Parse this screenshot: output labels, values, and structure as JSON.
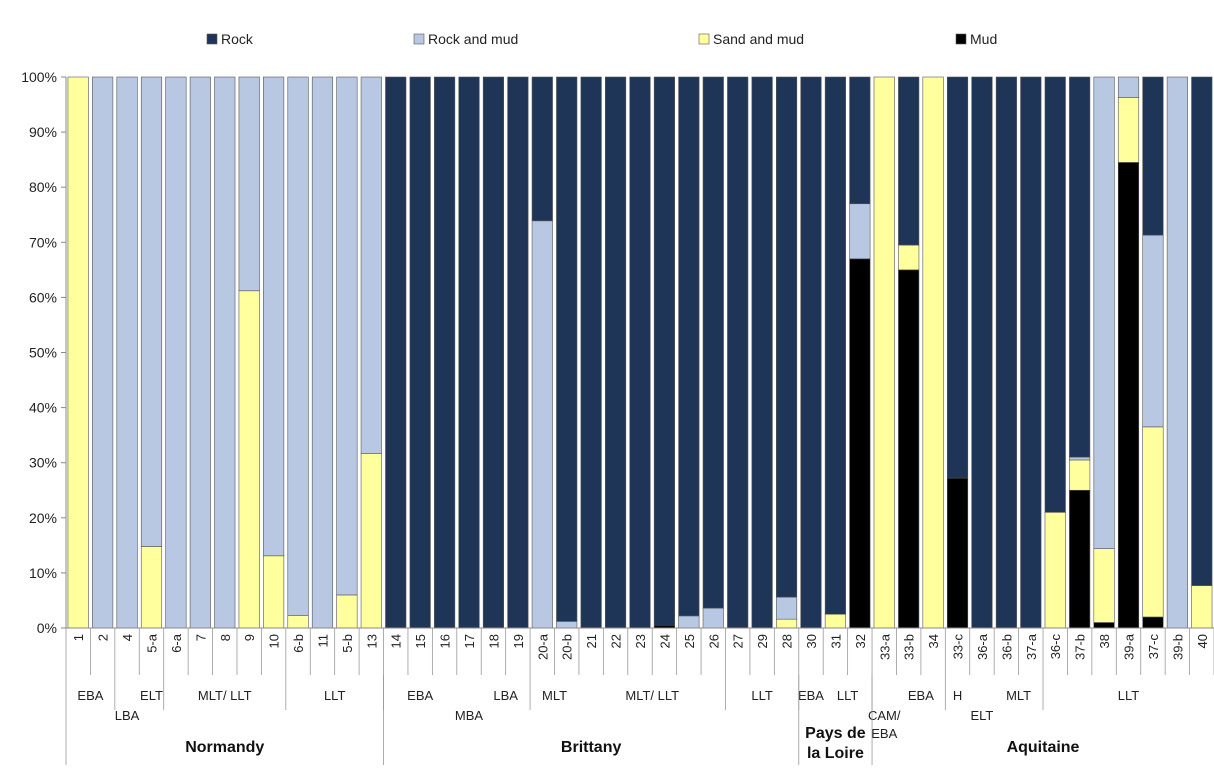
{
  "chart_data": {
    "type": "bar",
    "stacked": true,
    "ylim": [
      0,
      100
    ],
    "y_ticks": [
      "0%",
      "10%",
      "20%",
      "30%",
      "40%",
      "50%",
      "60%",
      "70%",
      "80%",
      "90%",
      "100%"
    ],
    "grid": false,
    "legend_position": "top",
    "series": [
      {
        "name": "Rock",
        "color": "#1f3558"
      },
      {
        "name": "Rock and mud",
        "color": "#b8c8e2"
      },
      {
        "name": "Sand and mud",
        "color": "#ffff9e"
      },
      {
        "name": "Mud",
        "color": "#000000"
      }
    ],
    "categories": [
      "1",
      "2",
      "4",
      "5-a",
      "6-a",
      "7",
      "8",
      "9",
      "10",
      "6-b",
      "11",
      "5-b",
      "13",
      "14",
      "15",
      "16",
      "17",
      "18",
      "19",
      "20-a",
      "20-b",
      "21",
      "22",
      "23",
      "24",
      "25",
      "26",
      "27",
      "29",
      "28",
      "30",
      "31",
      "32",
      "33-a",
      "33-b",
      "34",
      "33-c",
      "36-a",
      "36-b",
      "37-a",
      "36-c",
      "37-b",
      "38",
      "39-a",
      "37-c",
      "39-b",
      "40"
    ],
    "values": [
      {
        "mud": 0,
        "sand": 100,
        "rockmud": 0,
        "rock": 0
      },
      {
        "mud": 0,
        "sand": 0,
        "rockmud": 100,
        "rock": 0
      },
      {
        "mud": 0,
        "sand": 0,
        "rockmud": 100,
        "rock": 0
      },
      {
        "mud": 0,
        "sand": 14.8,
        "rockmud": 85.2,
        "rock": 0
      },
      {
        "mud": 0,
        "sand": 0,
        "rockmud": 100,
        "rock": 0
      },
      {
        "mud": 0,
        "sand": 0,
        "rockmud": 100,
        "rock": 0
      },
      {
        "mud": 0,
        "sand": 0,
        "rockmud": 100,
        "rock": 0
      },
      {
        "mud": 0,
        "sand": 61.2,
        "rockmud": 38.8,
        "rock": 0
      },
      {
        "mud": 0,
        "sand": 13.1,
        "rockmud": 86.9,
        "rock": 0
      },
      {
        "mud": 0,
        "sand": 2.3,
        "rockmud": 97.7,
        "rock": 0
      },
      {
        "mud": 0,
        "sand": 0,
        "rockmud": 100,
        "rock": 0
      },
      {
        "mud": 0,
        "sand": 6,
        "rockmud": 94,
        "rock": 0
      },
      {
        "mud": 0,
        "sand": 31.7,
        "rockmud": 68.3,
        "rock": 0
      },
      {
        "mud": 0,
        "sand": 0,
        "rockmud": 0,
        "rock": 100
      },
      {
        "mud": 0,
        "sand": 0,
        "rockmud": 0,
        "rock": 100
      },
      {
        "mud": 0,
        "sand": 0,
        "rockmud": 0,
        "rock": 100
      },
      {
        "mud": 0,
        "sand": 0,
        "rockmud": 0,
        "rock": 100
      },
      {
        "mud": 0,
        "sand": 0,
        "rockmud": 0,
        "rock": 100
      },
      {
        "mud": 0,
        "sand": 0,
        "rockmud": 0,
        "rock": 100
      },
      {
        "mud": 0,
        "sand": 0,
        "rockmud": 73.9,
        "rock": 26.1
      },
      {
        "mud": 0,
        "sand": 0,
        "rockmud": 1.2,
        "rock": 98.8
      },
      {
        "mud": 0,
        "sand": 0,
        "rockmud": 0,
        "rock": 100
      },
      {
        "mud": 0,
        "sand": 0,
        "rockmud": 0,
        "rock": 100
      },
      {
        "mud": 0,
        "sand": 0,
        "rockmud": 0,
        "rock": 100
      },
      {
        "mud": 0.5,
        "sand": 0,
        "rockmud": 0,
        "rock": 99.5
      },
      {
        "mud": 0,
        "sand": 0,
        "rockmud": 2.2,
        "rock": 97.8
      },
      {
        "mud": 0,
        "sand": 0,
        "rockmud": 3.6,
        "rock": 96.4
      },
      {
        "mud": 0,
        "sand": 0,
        "rockmud": 0,
        "rock": 100
      },
      {
        "mud": 0,
        "sand": 0,
        "rockmud": 0,
        "rock": 100
      },
      {
        "mud": 0,
        "sand": 1.6,
        "rockmud": 4,
        "rock": 94.4
      },
      {
        "mud": 0,
        "sand": 0,
        "rockmud": 0,
        "rock": 100
      },
      {
        "mud": 0,
        "sand": 2.5,
        "rockmud": 0,
        "rock": 97.5
      },
      {
        "mud": 67,
        "sand": 0,
        "rockmud": 10,
        "rock": 23
      },
      {
        "mud": 0,
        "sand": 100,
        "rockmud": 0,
        "rock": 0
      },
      {
        "mud": 65,
        "sand": 4.5,
        "rockmud": 0,
        "rock": 30.5
      },
      {
        "mud": 0,
        "sand": 100,
        "rockmud": 0,
        "rock": 0
      },
      {
        "mud": 27.2,
        "sand": 0,
        "rockmud": 0,
        "rock": 72.8
      },
      {
        "mud": 0,
        "sand": 0,
        "rockmud": 0,
        "rock": 100
      },
      {
        "mud": 0,
        "sand": 0,
        "rockmud": 0,
        "rock": 100
      },
      {
        "mud": 0,
        "sand": 0,
        "rockmud": 0,
        "rock": 100
      },
      {
        "mud": 0,
        "sand": 21,
        "rockmud": 0,
        "rock": 79
      },
      {
        "mud": 25,
        "sand": 5.5,
        "rockmud": 0.5,
        "rock": 69
      },
      {
        "mud": 1,
        "sand": 13.4,
        "rockmud": 85.6,
        "rock": 0
      },
      {
        "mud": 84.5,
        "sand": 11.8,
        "rockmud": 3.7,
        "rock": 0
      },
      {
        "mud": 2,
        "sand": 34.5,
        "rockmud": 34.8,
        "rock": 28.7
      },
      {
        "mud": 0,
        "sand": 0,
        "rockmud": 100,
        "rock": 0
      },
      {
        "mud": 0,
        "sand": 7.7,
        "rockmud": 0,
        "rock": 92.3
      }
    ],
    "periods": [
      {
        "label": "EBA",
        "from": 0,
        "to": 1,
        "row": 0
      },
      {
        "label": "LBA",
        "from": 2,
        "to": 2,
        "row": 1
      },
      {
        "label": "ELT",
        "from": 3,
        "to": 3,
        "row": 0
      },
      {
        "label": "MLT/ LLT",
        "from": 4,
        "to": 8,
        "row": 0
      },
      {
        "label": "LLT",
        "from": 9,
        "to": 12,
        "row": 0
      },
      {
        "label": "EBA",
        "from": 13,
        "to": 15,
        "row": 0
      },
      {
        "label": "MBA",
        "from": 16,
        "to": 16,
        "row": 1
      },
      {
        "label": "LBA",
        "from": 17,
        "to": 18,
        "row": 0
      },
      {
        "label": "MLT",
        "from": 19,
        "to": 20,
        "row": 0
      },
      {
        "label": "MLT/ LLT",
        "from": 21,
        "to": 26,
        "row": 0
      },
      {
        "label": "LLT",
        "from": 27,
        "to": 29,
        "row": 0
      },
      {
        "label": "EBA",
        "from": 30,
        "to": 30,
        "row": 0
      },
      {
        "label": "LLT",
        "from": 31,
        "to": 32,
        "row": 0
      },
      {
        "label": "CAM/",
        "label2": "EBA",
        "from": 33,
        "to": 33,
        "row": 1
      },
      {
        "label": "EBA",
        "from": 34,
        "to": 35,
        "row": 0
      },
      {
        "label": "H",
        "from": 36,
        "to": 36,
        "row": 0
      },
      {
        "label": "ELT",
        "from": 37,
        "to": 37,
        "row": 1
      },
      {
        "label": "MLT",
        "from": 38,
        "to": 39,
        "row": 0
      },
      {
        "label": "LLT",
        "from": 40,
        "to": 46,
        "row": 0
      }
    ],
    "regions": [
      {
        "label": "Normandy",
        "from": 0,
        "to": 12
      },
      {
        "label": "Brittany",
        "from": 13,
        "to": 29
      },
      {
        "label": "Pays de",
        "label2": "la Loire",
        "from": 30,
        "to": 32
      },
      {
        "label": "Aquitaine",
        "from": 33,
        "to": 46
      }
    ]
  }
}
